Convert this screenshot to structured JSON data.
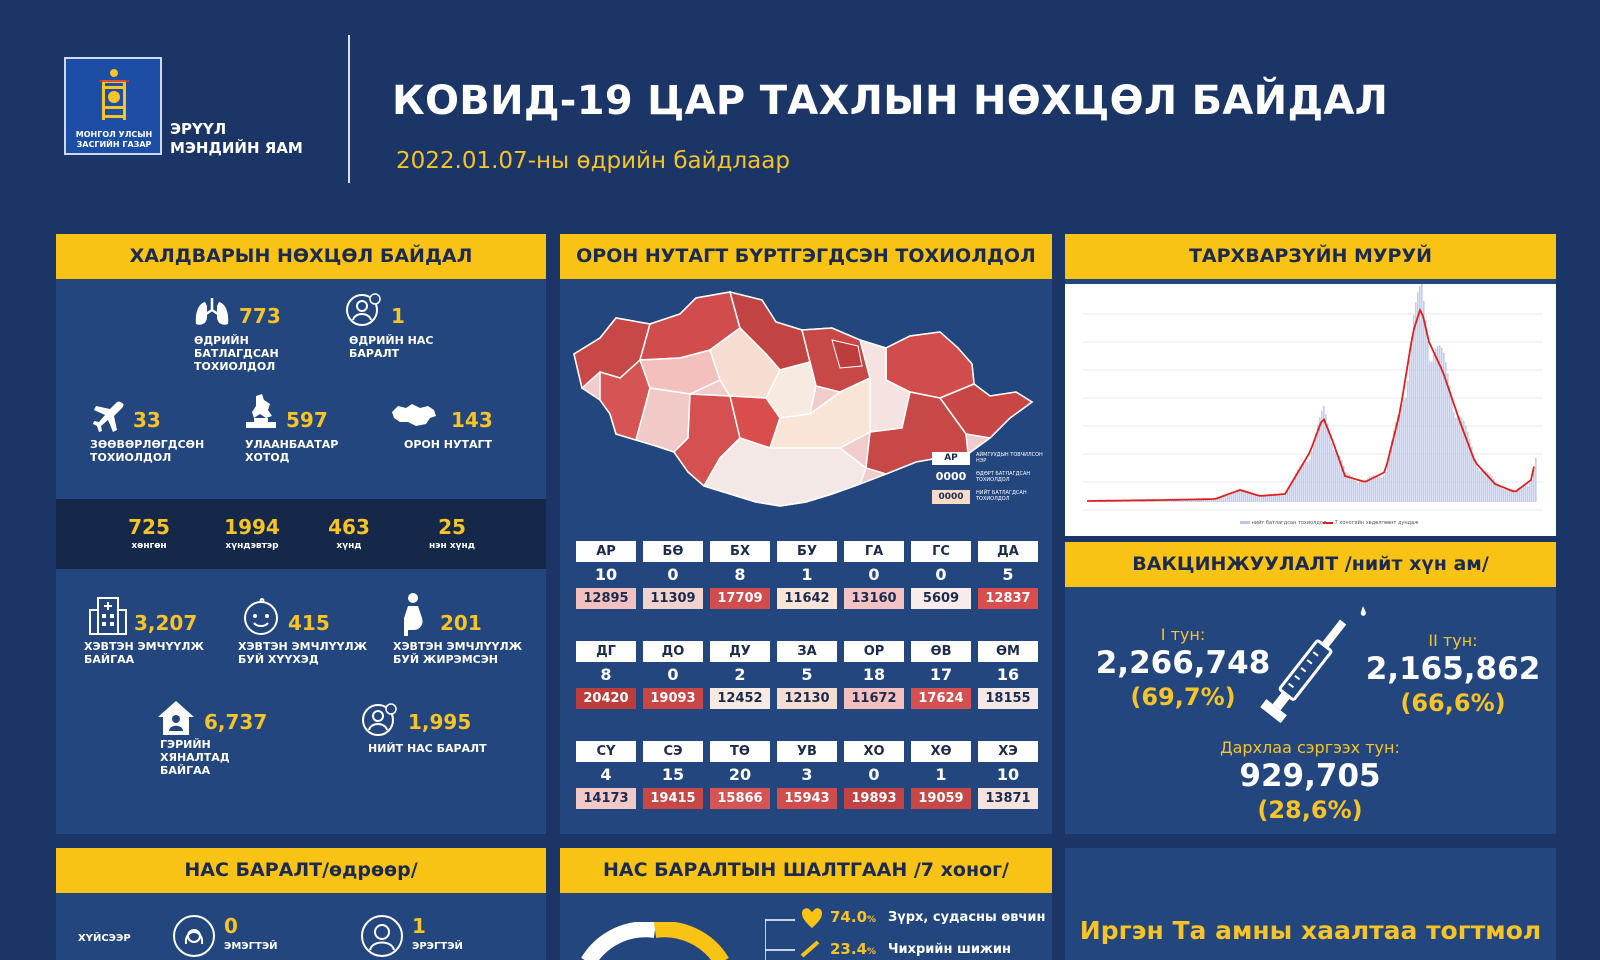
{
  "header": {
    "logo_caption": "МОНГОЛ УЛСЫН ЗАСГИЙН ГАЗАР",
    "ministry": "ЭРҮҮЛ МЭНДИЙН ЯАМ",
    "title": "КОВИД-19 ЦАР ТАХЛЫН НӨХЦӨЛ БАЙДАЛ",
    "subtitle": "2022.01.07-ны өдрийн байдлаар"
  },
  "infection": {
    "heading": "ХАЛДВАРЫН НӨХЦӨЛ БАЙДАЛ",
    "daily_cases": {
      "value": "773",
      "label": "ӨДРИЙН БАТЛАГДСАН ТОХИОЛДОЛ"
    },
    "daily_deaths": {
      "value": "1",
      "label": "ӨДРИЙН НАС БАРАЛТ"
    },
    "imported": {
      "value": "33",
      "label": "ЗӨӨВӨРЛӨГДСӨН ТОХИОЛДОЛ"
    },
    "ulaanbaatar": {
      "value": "597",
      "label": "УЛААНБААТАР ХОТОД"
    },
    "rural": {
      "value": "143",
      "label": "ОРОН НУТАГТ"
    },
    "severity": [
      {
        "value": "725",
        "label": "хөнгөн"
      },
      {
        "value": "1994",
        "label": "хүндэвтэр"
      },
      {
        "value": "463",
        "label": "хүнд"
      },
      {
        "value": "25",
        "label": "нэн хүнд"
      }
    ],
    "hospitalized": {
      "value": "3,207",
      "label": "ХЭВТЭН ЭМЧҮҮЛЖ БАЙГАА"
    },
    "children": {
      "value": "415",
      "label": "ХЭВТЭН ЭМЧЛҮҮЛЖ БУЙ ХҮҮХЭД"
    },
    "pregnant": {
      "value": "201",
      "label": "ХЭВТЭН ЭМЧЛҮҮЛЖ БУЙ ЖИРЭМСЭН"
    },
    "home_monitoring": {
      "value": "6,737",
      "label": "ГЭРИЙН ХЯНАЛТАД БАЙГАА"
    },
    "total_deaths": {
      "value": "1,995",
      "label": "НИЙТ НАС БАРАЛТ"
    }
  },
  "local": {
    "heading": "ОРОН НУТАГТ БҮРТГЭГДСЭН ТОХИОЛДОЛ",
    "legend": [
      {
        "box": "АР",
        "text": "АЙМГУУДЫН ТОВЧИЛСОН НЭР"
      },
      {
        "box": "0000",
        "text": "ӨДӨРТ БАТЛАГДСАН ТОХИОЛДОЛ"
      },
      {
        "box": "0000",
        "text": "НИЙТ БАТЛАГДСАН ТОХИОЛДОЛ"
      }
    ],
    "rows": [
      [
        {
          "code": "АР",
          "daily": "10",
          "total": "12895",
          "shade": "#f3c0c0"
        },
        {
          "code": "БӨ",
          "daily": "0",
          "total": "11309",
          "shade": "#f0d2ce"
        },
        {
          "code": "БХ",
          "daily": "8",
          "total": "17709",
          "shade": "#d14c4c"
        },
        {
          "code": "БУ",
          "daily": "1",
          "total": "11642",
          "shade": "#f9e4d8"
        },
        {
          "code": "ГА",
          "daily": "0",
          "total": "13160",
          "shade": "#f3c2c2"
        },
        {
          "code": "ГС",
          "daily": "0",
          "total": "5609",
          "shade": "#f7ecea"
        },
        {
          "code": "ДА",
          "daily": "5",
          "total": "12837",
          "shade": "#d94d4d"
        }
      ],
      [
        {
          "code": "ДГ",
          "daily": "8",
          "total": "20420",
          "shade": "#bd3c3c"
        },
        {
          "code": "ДО",
          "daily": "0",
          "total": "19093",
          "shade": "#c94646"
        },
        {
          "code": "ДУ",
          "daily": "2",
          "total": "12452",
          "shade": "#f7eae0"
        },
        {
          "code": "ЗА",
          "daily": "5",
          "total": "12130",
          "shade": "#f5ddd2"
        },
        {
          "code": "ОР",
          "daily": "18",
          "total": "11672",
          "shade": "#f3c0bd"
        },
        {
          "code": "ӨВ",
          "daily": "17",
          "total": "17624",
          "shade": "#d55050"
        },
        {
          "code": "ӨМ",
          "daily": "16",
          "total": "18155",
          "shade": "#f4e8e6"
        }
      ],
      [
        {
          "code": "СҮ",
          "daily": "4",
          "total": "14173",
          "shade": "#f1c9c6"
        },
        {
          "code": "СЭ",
          "daily": "15",
          "total": "19415",
          "shade": "#c84848"
        },
        {
          "code": "ТӨ",
          "daily": "20",
          "total": "15866",
          "shade": "#d65454"
        },
        {
          "code": "УВ",
          "daily": "3",
          "total": "15943",
          "shade": "#d14c4c"
        },
        {
          "code": "ХО",
          "daily": "0",
          "total": "19893",
          "shade": "#c24343"
        },
        {
          "code": "ХӨ",
          "daily": "1",
          "total": "19059",
          "shade": "#c84848"
        },
        {
          "code": "ХЭ",
          "daily": "10",
          "total": "13871",
          "shade": "#f4e3dc"
        }
      ]
    ]
  },
  "epi": {
    "heading": "ТАРХВАРЗҮЙН МУРУЙ",
    "legend_bar": "нийт батлагдсан тохиолдол",
    "legend_line": "7 хоногийн хөдөлгөөнт дундаж"
  },
  "vaccination": {
    "heading": "ВАКЦИНЖУУЛАЛТ /нийт хүн ам/",
    "dose1_label": "I тун:",
    "dose1_value": "2,266,748",
    "dose1_pct": "(69,7%)",
    "dose2_label": "II тун:",
    "dose2_value": "2,165,862",
    "dose2_pct": "(66,6%)",
    "booster_label": "Дархлаа сэргээх тун:",
    "booster_value": "929,705",
    "booster_pct": "(28,6%)"
  },
  "deaths_daily": {
    "heading": "НАС БАРАЛТ/өдрөөр/",
    "by_gender_label": "ХҮЙСЭЭР",
    "female": {
      "value": "0",
      "label": "ЭМЭГТЭЙ"
    },
    "male": {
      "value": "1",
      "label": "ЭРЭГТЭЙ"
    }
  },
  "death_causes": {
    "heading": "НАС БАРАЛТЫН ШАЛТГААН /7 хоног/",
    "items": [
      {
        "pct": "74.0",
        "unit": "%",
        "text": "Зүрх, судасны өвчин"
      },
      {
        "pct": "23.4",
        "unit": "%",
        "text": "Чихрийн шижин"
      }
    ]
  },
  "message": {
    "text": "Иргэн Та амны хаалтаа тогтмол"
  },
  "colors": {
    "background": "#1a3566",
    "panel": "#23467f",
    "accent_yellow": "#f9c315"
  }
}
